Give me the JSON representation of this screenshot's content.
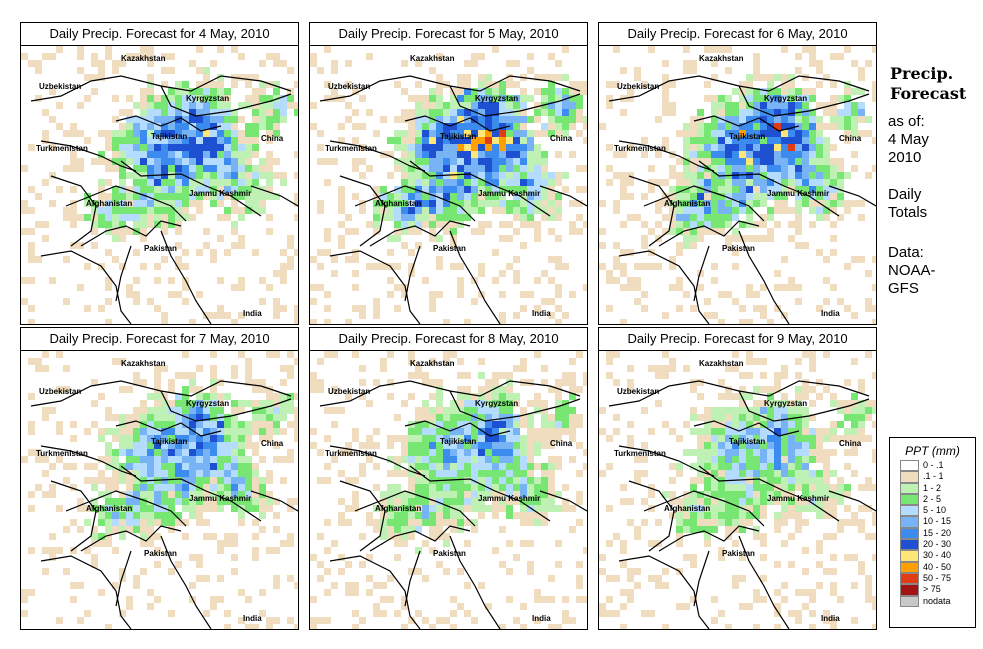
{
  "panels": [
    {
      "title": "Daily Precip. Forecast for  4 May, 2010",
      "seed": 11,
      "intensity": 1.0
    },
    {
      "title": "Daily Precip. Forecast for  5 May, 2010",
      "seed": 23,
      "intensity": 1.2
    },
    {
      "title": "Daily Precip. Forecast for  6 May, 2010",
      "seed": 37,
      "intensity": 1.1
    },
    {
      "title": "Daily Precip. Forecast for  7 May, 2010",
      "seed": 41,
      "intensity": 0.9
    },
    {
      "title": "Daily Precip. Forecast for  8 May, 2010",
      "seed": 53,
      "intensity": 0.8
    },
    {
      "title": "Daily Precip. Forecast for  9 May, 2010",
      "seed": 67,
      "intensity": 0.7
    }
  ],
  "map_labels": {
    "kazakhstan": "Kazakhstan",
    "uzbekistan": "Uzbekistan",
    "kyrgyzstan": "Kyrgyzstan",
    "tajikistan": "Tajikistan",
    "turkmenistan": "Turkmenistan",
    "china": "China",
    "afghanistan": "Afghanistan",
    "jammu_kashmir": "Jammu Kashmir",
    "pakistan": "Pakistan",
    "india": "India"
  },
  "sidebar": {
    "title_line1": "Precip.",
    "title_line2": "Forecast",
    "asof_line1": "as of:",
    "asof_line2": "4 May",
    "asof_line3": "2010",
    "daily_line1": "Daily",
    "daily_line2": "Totals",
    "data_line1": "Data:",
    "data_line2": "NOAA-",
    "data_line3": "GFS"
  },
  "legend": {
    "title": "PPT (mm)",
    "items": [
      {
        "label": "0 - .1",
        "color": "#ffffff"
      },
      {
        "label": ".1 - 1",
        "color": "#f0dcbe"
      },
      {
        "label": "1 - 2",
        "color": "#bff0b4"
      },
      {
        "label": "2 - 5",
        "color": "#78e673"
      },
      {
        "label": "5 - 10",
        "color": "#b4dcff"
      },
      {
        "label": "10 - 15",
        "color": "#78b4f5"
      },
      {
        "label": "15 - 20",
        "color": "#3c8cf0"
      },
      {
        "label": "20 - 30",
        "color": "#1e50d2"
      },
      {
        "label": "30 - 40",
        "color": "#ffe678"
      },
      {
        "label": "40 - 50",
        "color": "#ffa000"
      },
      {
        "label": "50 - 75",
        "color": "#e13c14"
      },
      {
        "label": "> 75",
        "color": "#a01414"
      },
      {
        "label": "nodata",
        "color": "#c8c8c8"
      }
    ]
  }
}
